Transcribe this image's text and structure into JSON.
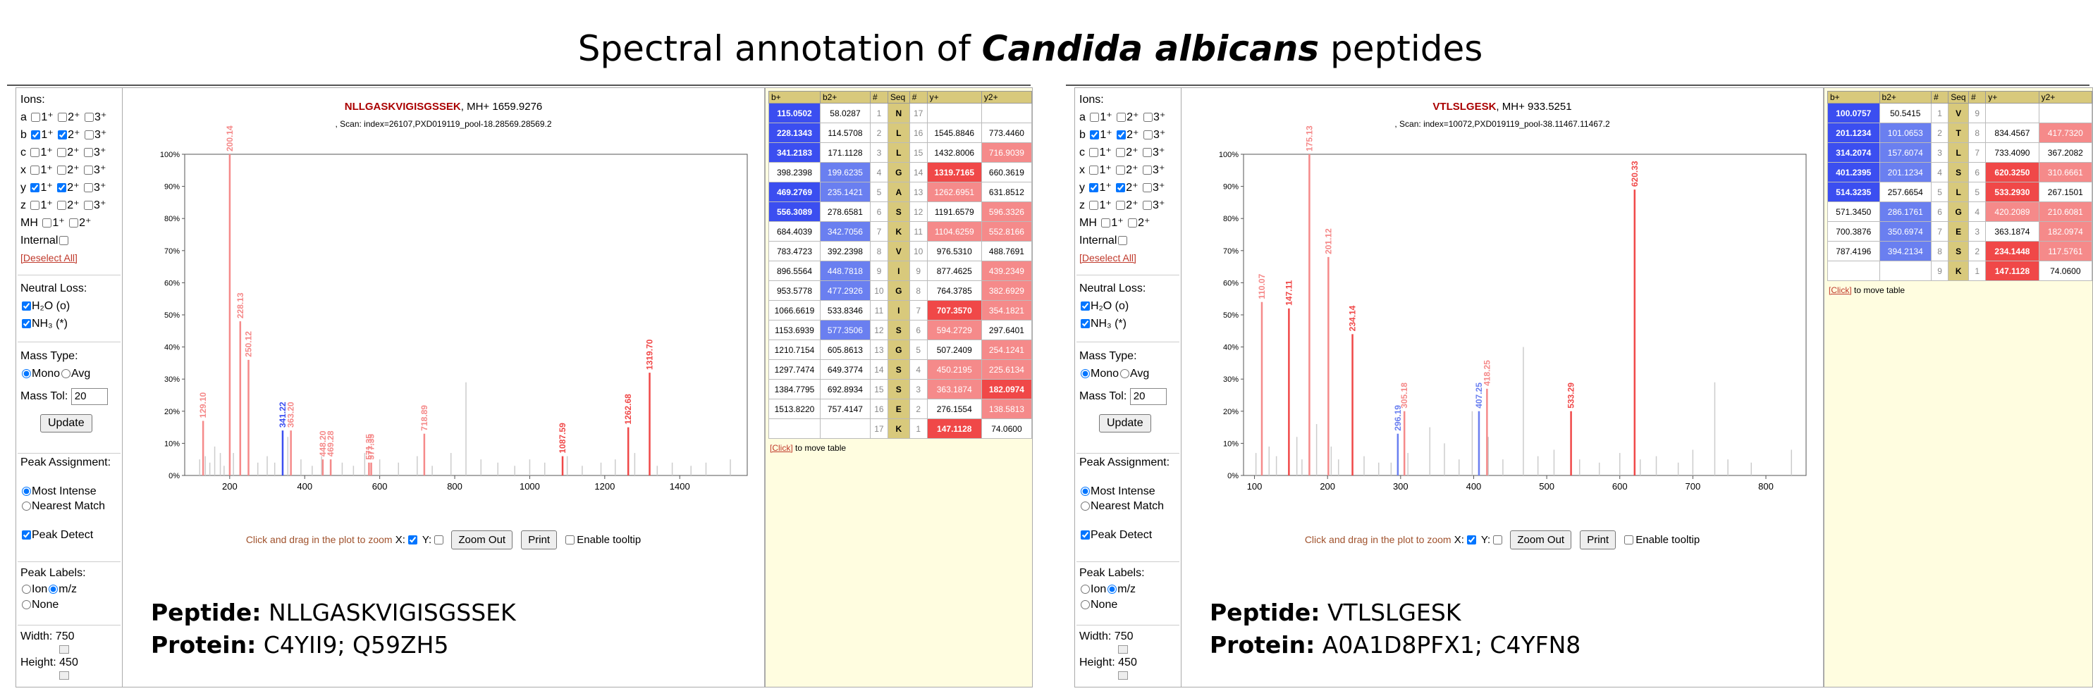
{
  "header": {
    "title_prefix": "Spectral annotation of ",
    "title_species": "Candida albicans",
    "title_suffix": " peptides"
  },
  "controls": {
    "ions_label": "Ions:",
    "ion_rows": [
      {
        "ion": "a",
        "c1": false,
        "c2": false,
        "c3": false
      },
      {
        "ion": "b",
        "c1": true,
        "c2": true,
        "c3": false
      },
      {
        "ion": "c",
        "c1": false,
        "c2": false,
        "c3": false
      },
      {
        "ion": "x",
        "c1": false,
        "c2": false,
        "c3": false
      },
      {
        "ion": "y",
        "c1": true,
        "c2": true,
        "c3": false
      },
      {
        "ion": "z",
        "c1": false,
        "c2": false,
        "c3": false
      }
    ],
    "charge1": "1⁺",
    "charge2": "2⁺",
    "charge3": "3⁺",
    "mh_label": "MH",
    "internal_label": "Internal",
    "deselect_label": "[Deselect All]",
    "neutral_loss_label": "Neutral Loss:",
    "h2o_label": "H₂O (o)",
    "nh3_label": "NH₃ (*)",
    "mass_type_label": "Mass Type:",
    "mono_label": "Mono",
    "avg_label": "Avg",
    "mass_tol_label": "Mass Tol:",
    "mass_tol_value": "20",
    "update_label": "Update",
    "peak_assign_label": "Peak Assignment:",
    "most_intense_label": "Most Intense",
    "nearest_label": "Nearest Match",
    "peak_detect_label": "Peak Detect",
    "peak_labels_label": "Peak Labels:",
    "ion_label": "Ion",
    "mz_label": "m/z",
    "none_label": "None",
    "width_label": "Width: 750",
    "height_label": "Height: 450"
  },
  "zoombar": {
    "hint": "Click and drag in the plot to zoom",
    "x_label": "X:",
    "y_label": "Y:",
    "zoom_out": "Zoom Out",
    "print": "Print",
    "tooltip": "Enable tooltip"
  },
  "click_note": {
    "link": "[Click]",
    "text": " to move table"
  },
  "table_headers": [
    "b+",
    "b2+",
    "#",
    "Seq",
    "#",
    "y+",
    "y2+"
  ],
  "colors": {
    "blue_strong": "#3b4ef0",
    "blue_light": "#6a7ff0",
    "red_strong": "#f04848",
    "red_light": "#f58a8a",
    "peak_grey": "#cccccc"
  },
  "panels": [
    {
      "peptide": "NLLGASKVIGISGSSEK",
      "mh": ", MH+ 1659.9276",
      "scan": ", Scan: index=26107,PXD019119_pool-18.28569.28569.2",
      "annot_peptide_label": "Peptide:",
      "annot_peptide": "NLLGASKVIGISGSSEK",
      "annot_protein_label": "Protein:",
      "annot_protein": "C4YII9; Q59ZH5",
      "chart_data": {
        "type": "bar",
        "xlim": [
          80,
          1580
        ],
        "ylim": [
          0,
          100
        ],
        "x_ticks": [
          200,
          400,
          600,
          800,
          1000,
          1200,
          1400
        ],
        "y_ticks": [
          "0%",
          "10%",
          "20%",
          "30%",
          "40%",
          "50%",
          "60%",
          "70%",
          "80%",
          "90%",
          "100%"
        ],
        "grey_peaks": [
          [
            120,
            5
          ],
          [
            135,
            6
          ],
          [
            147,
            4
          ],
          [
            160,
            9
          ],
          [
            175,
            7
          ],
          [
            185,
            3
          ],
          [
            210,
            7
          ],
          [
            250,
            5
          ],
          [
            275,
            4
          ],
          [
            300,
            6
          ],
          [
            320,
            4
          ],
          [
            355,
            12
          ],
          [
            390,
            5
          ],
          [
            420,
            3
          ],
          [
            445,
            6
          ],
          [
            470,
            5
          ],
          [
            500,
            4
          ],
          [
            530,
            3
          ],
          [
            560,
            7
          ],
          [
            600,
            5
          ],
          [
            650,
            4
          ],
          [
            700,
            6
          ],
          [
            740,
            3
          ],
          [
            790,
            7
          ],
          [
            830,
            29
          ],
          [
            870,
            5
          ],
          [
            915,
            4
          ],
          [
            960,
            3
          ],
          [
            1000,
            5
          ],
          [
            1040,
            4
          ],
          [
            1100,
            6
          ],
          [
            1140,
            3
          ],
          [
            1190,
            4
          ],
          [
            1228,
            5
          ],
          [
            1280,
            7
          ],
          [
            1340,
            3
          ],
          [
            1380,
            4
          ],
          [
            1430,
            3
          ],
          [
            1470,
            4
          ],
          [
            1535,
            5
          ]
        ],
        "annotated_peaks": [
          {
            "x": 129.1,
            "y": 17,
            "color": "#f58a8a",
            "label": "129.10"
          },
          {
            "x": 200.14,
            "y": 100,
            "color": "#f58a8a",
            "label": "200.14"
          },
          {
            "x": 228.13,
            "y": 48,
            "color": "#f58a8a",
            "label": "228.13"
          },
          {
            "x": 250.12,
            "y": 36,
            "color": "#f58a8a",
            "label": "250.12"
          },
          {
            "x": 341.22,
            "y": 14,
            "color": "#3b4ef0",
            "label": "341.22"
          },
          {
            "x": 363.2,
            "y": 14,
            "color": "#f58a8a",
            "label": "363.20"
          },
          {
            "x": 448.2,
            "y": 5,
            "color": "#f58a8a",
            "label": "448.20"
          },
          {
            "x": 469.28,
            "y": 5,
            "color": "#f58a8a",
            "label": "469.28"
          },
          {
            "x": 571.35,
            "y": 4,
            "color": "#f58a8a",
            "label": "571.35"
          },
          {
            "x": 577.35,
            "y": 4,
            "color": "#f58a8a",
            "label": "577.35"
          },
          {
            "x": 718.89,
            "y": 13,
            "color": "#f58a8a",
            "label": "718.89"
          },
          {
            "x": 1087.59,
            "y": 6,
            "color": "#f04848",
            "label": "1087.59"
          },
          {
            "x": 1262.68,
            "y": 15,
            "color": "#f04848",
            "label": "1262.68"
          },
          {
            "x": 1319.7,
            "y": 32,
            "color": "#f04848",
            "label": "1319.70"
          }
        ]
      },
      "table_rows": [
        [
          "115.0502",
          "58.0287",
          "1",
          "N",
          "17",
          "",
          ""
        ],
        [
          "228.1343",
          "114.5708",
          "2",
          "L",
          "16",
          "1545.8846",
          "773.4460"
        ],
        [
          "341.2183",
          "171.1128",
          "3",
          "L",
          "15",
          "1432.8006",
          "716.9039"
        ],
        [
          "398.2398",
          "199.6235",
          "4",
          "G",
          "14",
          "1319.7165",
          "660.3619"
        ],
        [
          "469.2769",
          "235.1421",
          "5",
          "A",
          "13",
          "1262.6951",
          "631.8512"
        ],
        [
          "556.3089",
          "278.6581",
          "6",
          "S",
          "12",
          "1191.6579",
          "596.3326"
        ],
        [
          "684.4039",
          "342.7056",
          "7",
          "K",
          "11",
          "1104.6259",
          "552.8166"
        ],
        [
          "783.4723",
          "392.2398",
          "8",
          "V",
          "10",
          "976.5310",
          "488.7691"
        ],
        [
          "896.5564",
          "448.7818",
          "9",
          "I",
          "9",
          "877.4625",
          "439.2349"
        ],
        [
          "953.5778",
          "477.2926",
          "10",
          "G",
          "8",
          "764.3785",
          "382.6929"
        ],
        [
          "1066.6619",
          "533.8346",
          "11",
          "I",
          "7",
          "707.3570",
          "354.1821"
        ],
        [
          "1153.6939",
          "577.3506",
          "12",
          "S",
          "6",
          "594.2729",
          "297.6401"
        ],
        [
          "1210.7154",
          "605.8613",
          "13",
          "G",
          "5",
          "507.2409",
          "254.1241"
        ],
        [
          "1297.7474",
          "649.3774",
          "14",
          "S",
          "4",
          "450.2195",
          "225.6134"
        ],
        [
          "1384.7795",
          "692.8934",
          "15",
          "S",
          "3",
          "363.1874",
          "182.0974"
        ],
        [
          "1513.8220",
          "757.4147",
          "16",
          "E",
          "2",
          "276.1554",
          "138.5813"
        ],
        [
          "",
          "",
          "17",
          "K",
          "1",
          "147.1128",
          "74.0600"
        ]
      ],
      "table_colors": [
        [
          "bs",
          "",
          "",
          "",
          "",
          "",
          ""
        ],
        [
          "bs",
          "",
          "",
          "",
          "",
          "",
          ""
        ],
        [
          "bs",
          "",
          "",
          "",
          "",
          "",
          "rl"
        ],
        [
          "",
          "bl",
          "",
          "",
          "",
          "rs",
          ""
        ],
        [
          "bs",
          "bl",
          "",
          "",
          "",
          "rl",
          ""
        ],
        [
          "bs",
          "",
          "",
          "",
          "",
          "",
          "rl"
        ],
        [
          "",
          "bl",
          "",
          "",
          "",
          "rl",
          "rl"
        ],
        [
          "",
          "",
          "",
          "",
          "",
          "",
          ""
        ],
        [
          "",
          "bl",
          "",
          "",
          "",
          "",
          "rl"
        ],
        [
          "",
          "bl",
          "",
          "",
          "",
          "",
          "rl"
        ],
        [
          "",
          "",
          "",
          "",
          "",
          "rs",
          "rl"
        ],
        [
          "",
          "bl",
          "",
          "",
          "",
          "rl",
          ""
        ],
        [
          "",
          "",
          "",
          "",
          "",
          "",
          "rl"
        ],
        [
          "",
          "",
          "",
          "",
          "",
          "rl",
          "rl"
        ],
        [
          "",
          "",
          "",
          "",
          "",
          "rl",
          "rs"
        ],
        [
          "",
          "",
          "",
          "",
          "",
          "",
          "rl"
        ],
        [
          "",
          "",
          "",
          "",
          "",
          "rs",
          ""
        ]
      ]
    },
    {
      "peptide": "VTLSLGESK",
      "mh": ", MH+ 933.5251",
      "scan": ", Scan: index=10072,PXD019119_pool-38.11467.11467.2",
      "annot_peptide_label": "Peptide:",
      "annot_peptide": "VTLSLGESK",
      "annot_protein_label": "Protein:",
      "annot_protein": "A0A1D8PFX1; C4YFN8",
      "chart_data": {
        "type": "bar",
        "xlim": [
          85,
          855
        ],
        "ylim": [
          0,
          100
        ],
        "x_ticks": [
          100,
          200,
          300,
          400,
          500,
          600,
          700,
          800
        ],
        "y_ticks": [
          "0%",
          "10%",
          "20%",
          "30%",
          "40%",
          "50%",
          "60%",
          "70%",
          "80%",
          "90%",
          "100%"
        ],
        "grey_peaks": [
          [
            102,
            7
          ],
          [
            120,
            9
          ],
          [
            130,
            6
          ],
          [
            158,
            12
          ],
          [
            165,
            5
          ],
          [
            185,
            16
          ],
          [
            205,
            9
          ],
          [
            215,
            5
          ],
          [
            250,
            6
          ],
          [
            270,
            4
          ],
          [
            287,
            4
          ],
          [
            310,
            7
          ],
          [
            340,
            15
          ],
          [
            360,
            10
          ],
          [
            380,
            5
          ],
          [
            398,
            20
          ],
          [
            420,
            12
          ],
          [
            440,
            5
          ],
          [
            468,
            40
          ],
          [
            488,
            6
          ],
          [
            510,
            8
          ],
          [
            545,
            5
          ],
          [
            572,
            4
          ],
          [
            600,
            7
          ],
          [
            628,
            5
          ],
          [
            650,
            6
          ],
          [
            680,
            4
          ],
          [
            700,
            8
          ],
          [
            730,
            29
          ],
          [
            748,
            5
          ],
          [
            780,
            4
          ],
          [
            835,
            8
          ]
        ],
        "annotated_peaks": [
          {
            "x": 110.07,
            "y": 54,
            "color": "#f58a8a",
            "label": "110.07"
          },
          {
            "x": 147.11,
            "y": 52,
            "color": "#f04848",
            "label": "147.11"
          },
          {
            "x": 175.13,
            "y": 100,
            "color": "#f58a8a",
            "label": "175.13"
          },
          {
            "x": 201.12,
            "y": 68,
            "color": "#f58a8a",
            "label": "201.12"
          },
          {
            "x": 234.14,
            "y": 44,
            "color": "#f04848",
            "label": "234.14"
          },
          {
            "x": 296.19,
            "y": 13,
            "color": "#6a7ff0",
            "label": "296.19"
          },
          {
            "x": 305.18,
            "y": 20,
            "color": "#f58a8a",
            "label": "305.18"
          },
          {
            "x": 407.25,
            "y": 20,
            "color": "#6a7ff0",
            "label": "407.25"
          },
          {
            "x": 418.25,
            "y": 27,
            "color": "#f58a8a",
            "label": "418.25"
          },
          {
            "x": 533.29,
            "y": 20,
            "color": "#f04848",
            "label": "533.29"
          },
          {
            "x": 620.33,
            "y": 89,
            "color": "#f04848",
            "label": "620.33"
          }
        ]
      },
      "table_rows": [
        [
          "100.0757",
          "50.5415",
          "1",
          "V",
          "9",
          "",
          ""
        ],
        [
          "201.1234",
          "101.0653",
          "2",
          "T",
          "8",
          "834.4567",
          "417.7320"
        ],
        [
          "314.2074",
          "157.6074",
          "3",
          "L",
          "7",
          "733.4090",
          "367.2082"
        ],
        [
          "401.2395",
          "201.1234",
          "4",
          "S",
          "6",
          "620.3250",
          "310.6661"
        ],
        [
          "514.3235",
          "257.6654",
          "5",
          "L",
          "5",
          "533.2930",
          "267.1501"
        ],
        [
          "571.3450",
          "286.1761",
          "6",
          "G",
          "4",
          "420.2089",
          "210.6081"
        ],
        [
          "700.3876",
          "350.6974",
          "7",
          "E",
          "3",
          "363.1874",
          "182.0974"
        ],
        [
          "787.4196",
          "394.2134",
          "8",
          "S",
          "2",
          "234.1448",
          "117.5761"
        ],
        [
          "",
          "",
          "9",
          "K",
          "1",
          "147.1128",
          "74.0600"
        ]
      ],
      "table_colors": [
        [
          "bs",
          "",
          "",
          "",
          "",
          "",
          ""
        ],
        [
          "bs",
          "bl",
          "",
          "",
          "",
          "",
          "rl"
        ],
        [
          "bs",
          "bl",
          "",
          "",
          "",
          "",
          ""
        ],
        [
          "bs",
          "bl",
          "",
          "",
          "",
          "rs",
          "rl"
        ],
        [
          "bs",
          "",
          "",
          "",
          "",
          "rs",
          ""
        ],
        [
          "",
          "bl",
          "",
          "",
          "",
          "rl",
          "rl"
        ],
        [
          "",
          "bl",
          "",
          "",
          "",
          "",
          "rl"
        ],
        [
          "",
          "bl",
          "",
          "",
          "",
          "rs",
          "rl"
        ],
        [
          "",
          "",
          "",
          "",
          "",
          "rs",
          ""
        ]
      ]
    }
  ]
}
